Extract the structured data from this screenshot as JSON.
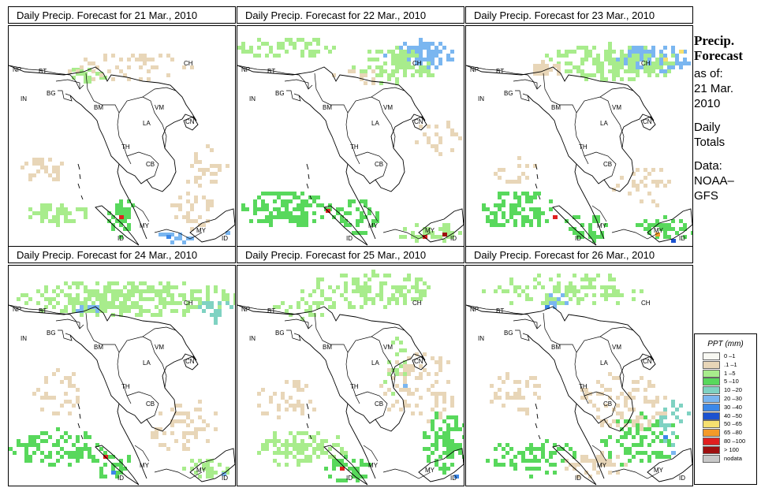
{
  "panels": [
    {
      "title": "Daily Precip. Forecast for  21 Mar., 2010"
    },
    {
      "title": "Daily Precip. Forecast for  22 Mar., 2010"
    },
    {
      "title": "Daily Precip. Forecast for  23 Mar., 2010"
    },
    {
      "title": "Daily Precip. Forecast for  24 Mar., 2010"
    },
    {
      "title": "Daily Precip. Forecast for  25 Mar., 2010"
    },
    {
      "title": "Daily Precip. Forecast for  26 Mar., 2010"
    }
  ],
  "country_labels": [
    "NP",
    "BT",
    "BG",
    "IN",
    "BM",
    "CH",
    "VM",
    "LA",
    "CN",
    "TH",
    "CB",
    "MY",
    "ID"
  ],
  "sidebar": {
    "heading_line1": "Precip.",
    "heading_line2": "Forecast",
    "asof_line1": "as of:",
    "asof_line2": "21 Mar.",
    "asof_line3": "2010",
    "totals_line1": "Daily",
    "totals_line2": "Totals",
    "data_line1": "Data:",
    "data_line2": "NOAA–",
    "data_line3": "GFS"
  },
  "legend": {
    "title": "PPT (mm)",
    "items": [
      {
        "label": "0 –1",
        "color": "#f8f8f2"
      },
      {
        "label": ".1 –1",
        "color": "#e8d6b8"
      },
      {
        "label": "1 –5",
        "color": "#a8ec8c"
      },
      {
        "label": "5 –10",
        "color": "#58d85c"
      },
      {
        "label": "10 –20",
        "color": "#7fd2c2"
      },
      {
        "label": "20 –30",
        "color": "#7ab6f0"
      },
      {
        "label": "30 –40",
        "color": "#3c88e8"
      },
      {
        "label": "40 –50",
        "color": "#1c52d0"
      },
      {
        "label": "50 –65",
        "color": "#f6e070"
      },
      {
        "label": "65 –80",
        "color": "#f49a2a"
      },
      {
        "label": "80 –100",
        "color": "#e02020"
      },
      {
        "label": "> 100",
        "color": "#9e1010"
      },
      {
        "label": "nodata",
        "color": "#c8c8c8"
      }
    ]
  }
}
